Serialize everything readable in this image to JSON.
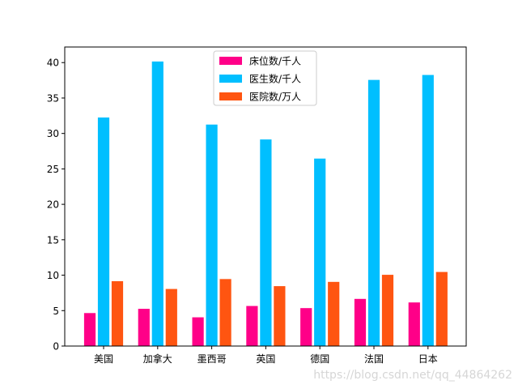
{
  "chart_data": {
    "type": "bar",
    "title": "",
    "xlabel": "",
    "ylabel": "",
    "categories": [
      "美国",
      "加拿大",
      "墨西哥",
      "英国",
      "德国",
      "法国",
      "日本"
    ],
    "series": [
      {
        "name": "床位数/千人",
        "color": "#ff0088",
        "values": [
          4.7,
          5.3,
          4.1,
          5.7,
          5.4,
          6.7,
          6.2
        ]
      },
      {
        "name": "医生数/千人",
        "color": "#00bfff",
        "values": [
          32.3,
          40.2,
          31.3,
          29.2,
          26.5,
          37.6,
          38.3
        ]
      },
      {
        "name": "医院数/万人",
        "color": "#ff5511",
        "values": [
          9.2,
          8.1,
          9.5,
          8.5,
          9.1,
          10.1,
          10.5
        ]
      }
    ],
    "ylim": [
      0,
      42.2
    ],
    "yticks": [
      0,
      5,
      10,
      15,
      20,
      25,
      30,
      35,
      40
    ],
    "legend_location": "upper center",
    "grid": false
  },
  "watermark": "https://blog.csdn.net/qq_44864262"
}
